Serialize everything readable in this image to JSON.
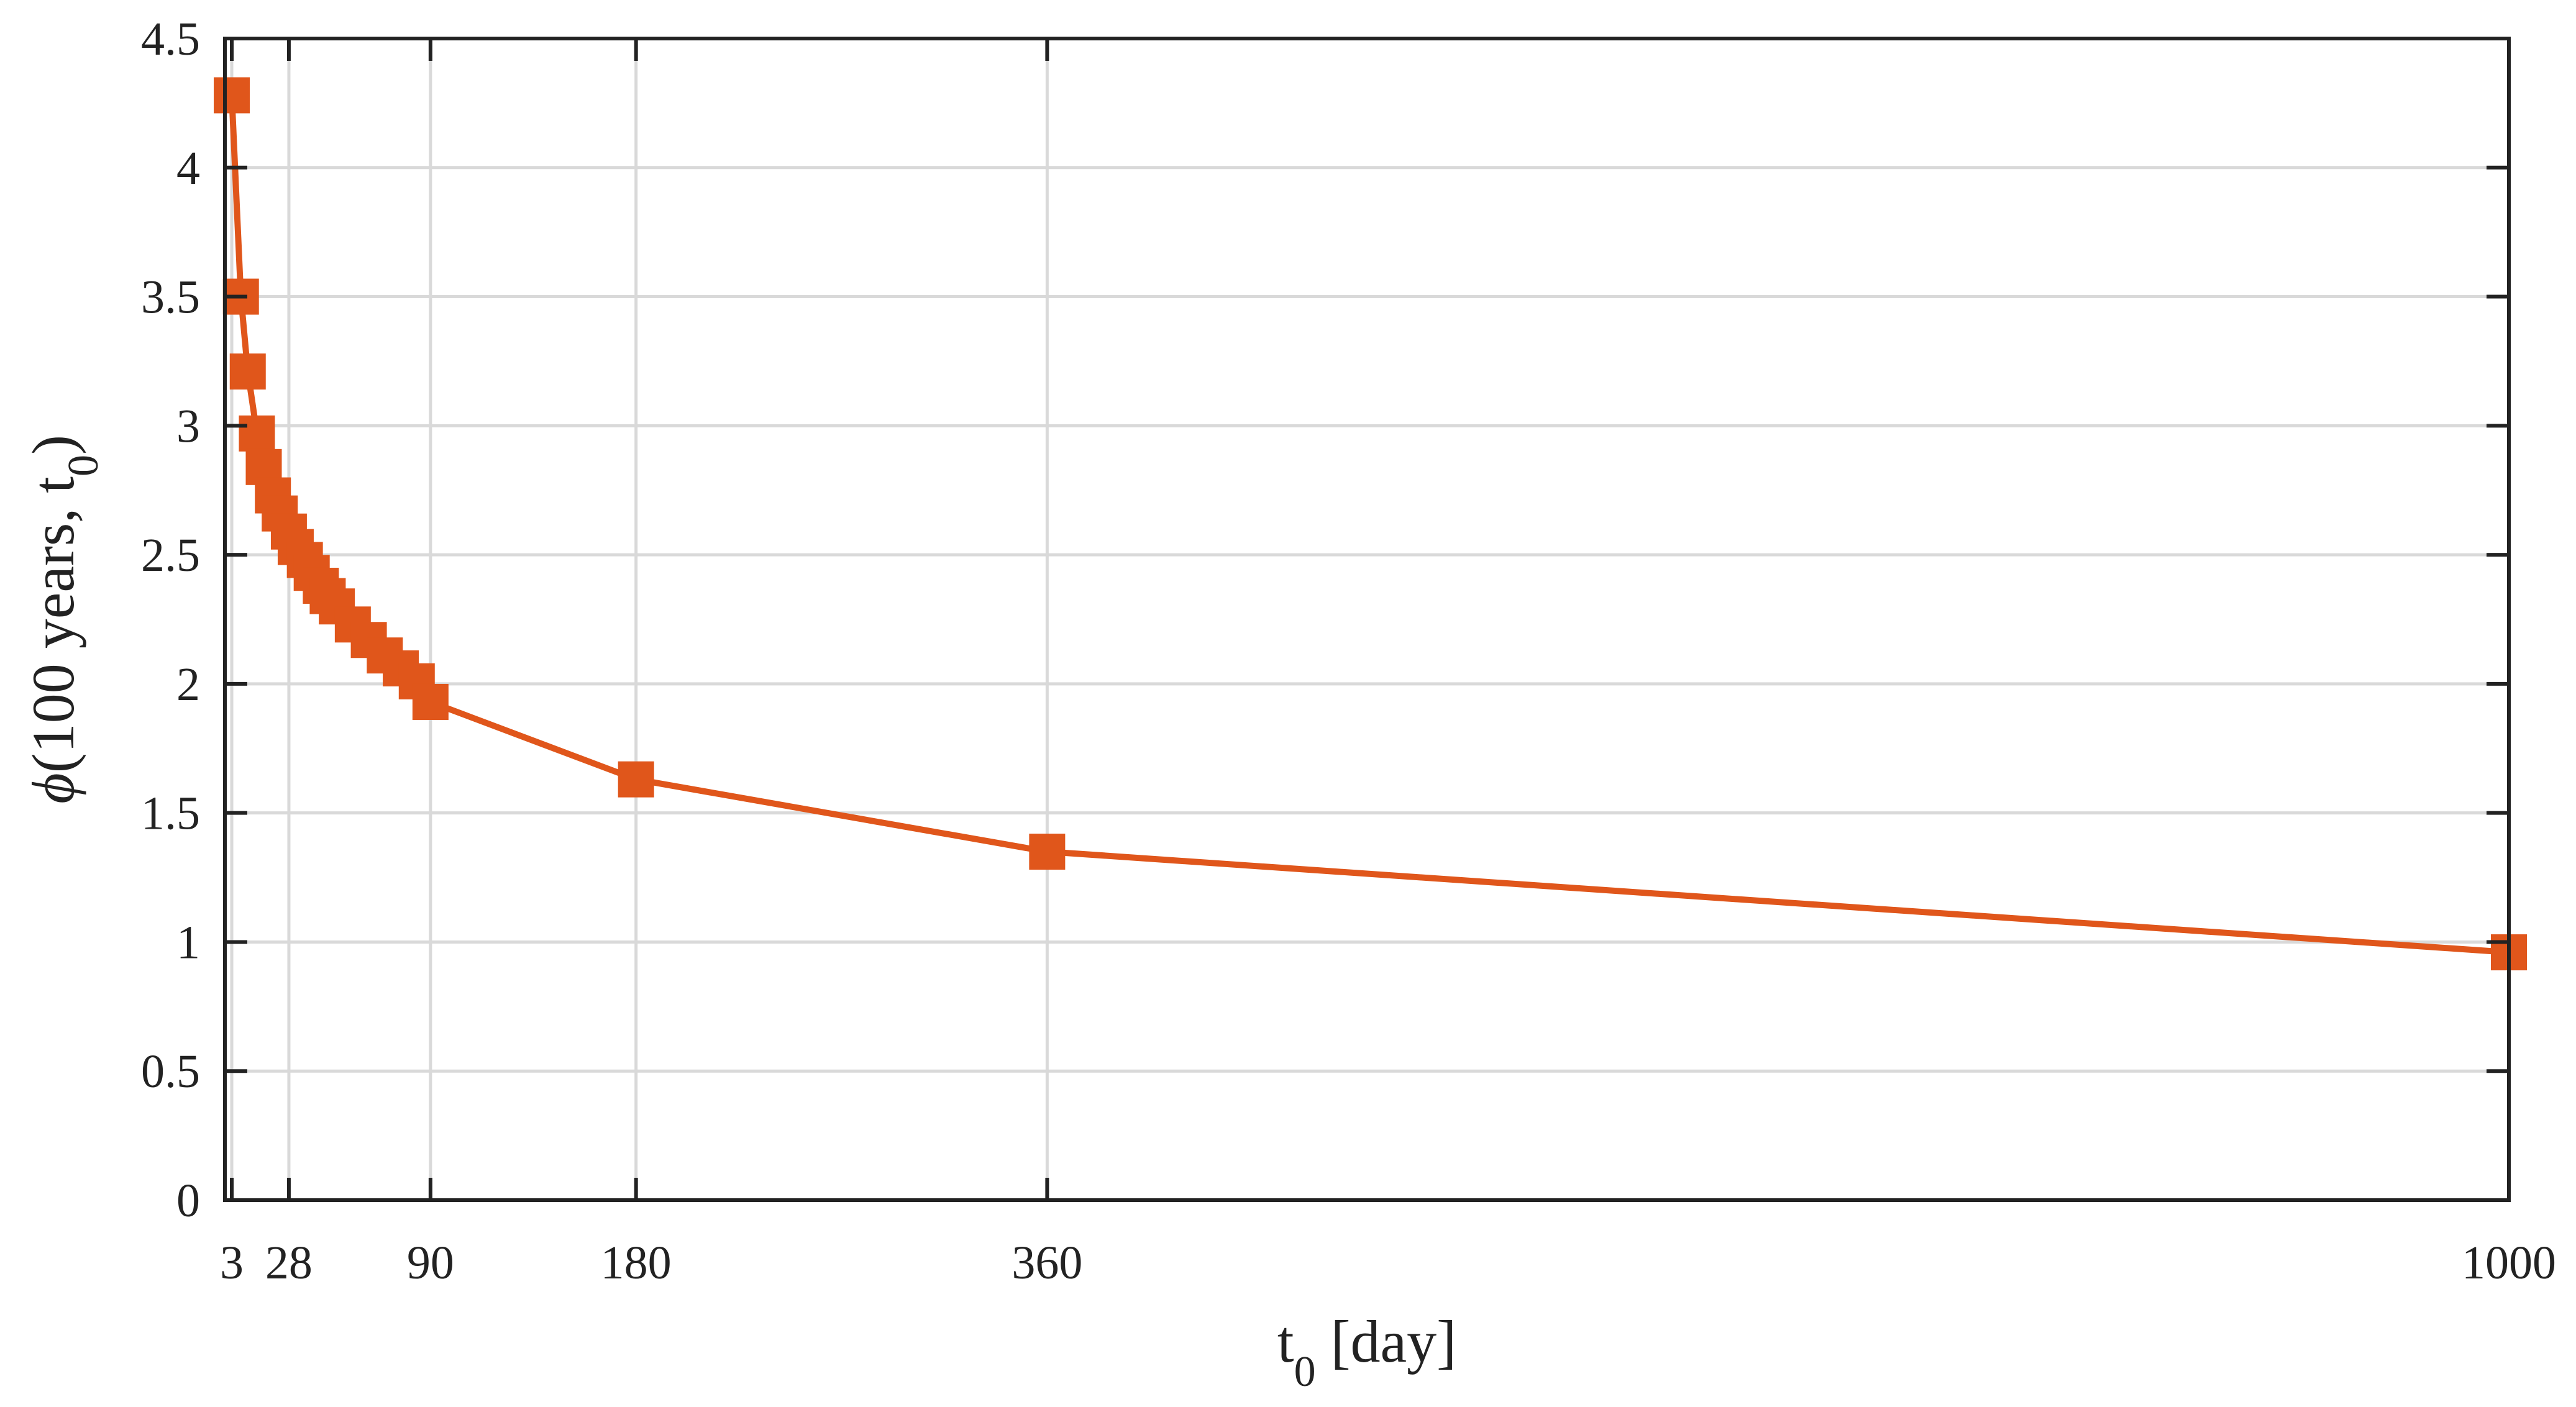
{
  "chart_data": {
    "type": "line",
    "title": "",
    "xlabel": {
      "main": "t",
      "sub": "0",
      "rest": " [day]"
    },
    "ylabel": {
      "phi": "ϕ",
      "main": "(100 years, t",
      "sub": "0",
      "close": ")"
    },
    "xlim": [
      0,
      1000
    ],
    "ylim": [
      0,
      4.5
    ],
    "xticks": [
      3,
      28,
      90,
      180,
      360,
      1000
    ],
    "xtick_labels": [
      "3",
      "28",
      "90",
      "180",
      "360",
      "1000"
    ],
    "yticks": [
      0,
      0.5,
      1,
      1.5,
      2,
      2.5,
      3,
      3.5,
      4,
      4.5
    ],
    "ytick_labels": [
      "0",
      "0.5",
      "1",
      "1.5",
      "2",
      "2.5",
      "3",
      "3.5",
      "4",
      "4.5"
    ],
    "grid": true,
    "colors": {
      "series": "#E0561B",
      "grid": "#D9D9D9",
      "axis": "#222222"
    },
    "series": [
      {
        "marker": "square",
        "x": [
          3,
          7,
          10,
          14,
          17,
          21,
          24,
          28,
          31,
          35,
          38,
          42,
          45,
          49,
          56,
          63,
          70,
          77,
          84,
          90,
          180,
          360,
          1000
        ],
        "y": [
          4.28,
          3.5,
          3.21,
          2.97,
          2.84,
          2.73,
          2.66,
          2.59,
          2.53,
          2.48,
          2.43,
          2.38,
          2.34,
          2.3,
          2.23,
          2.17,
          2.11,
          2.06,
          2.01,
          1.93,
          1.63,
          1.35,
          0.96
        ]
      }
    ]
  }
}
